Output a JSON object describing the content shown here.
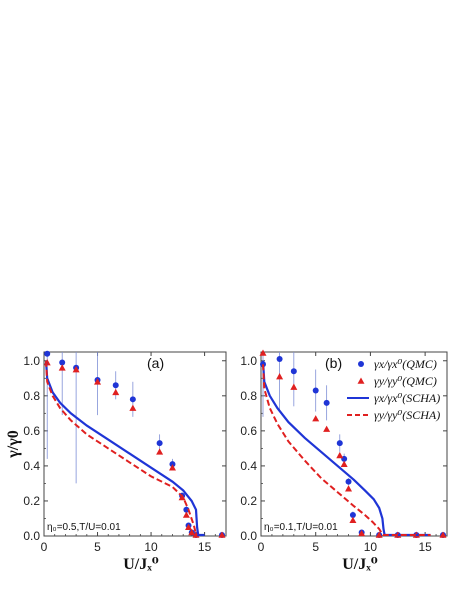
{
  "chart_data": [
    {
      "type": "scatter",
      "panel_label": "(a)",
      "annotation": "η₀=0.5,T/U=0.01",
      "xlabel": "U/Jₓ⁰",
      "ylabel": "γ/γ0",
      "xlim": [
        0,
        17
      ],
      "ylim": [
        0,
        1.05
      ],
      "xticks": [
        0,
        5,
        10,
        15
      ],
      "yticks": [
        0.0,
        0.2,
        0.4,
        0.6,
        0.8,
        1.0
      ],
      "xtick_labels": [
        "0",
        "5",
        "10",
        "15"
      ],
      "ytick_labels": [
        "0.0",
        "0.2",
        "0.4",
        "0.6",
        "0.8",
        "1.0"
      ],
      "series": [
        {
          "kind": "points",
          "marker": "circle",
          "color": "#1f35d6",
          "points": [
            {
              "x": 0.3,
              "y": 1.04,
              "err": 0.6
            },
            {
              "x": 1.7,
              "y": 0.99,
              "err": 0.3
            },
            {
              "x": 3.0,
              "y": 0.96,
              "err": 0.66
            },
            {
              "x": 5.0,
              "y": 0.89,
              "err": 0.2
            },
            {
              "x": 6.7,
              "y": 0.86,
              "err": 0.08
            },
            {
              "x": 8.3,
              "y": 0.78,
              "err": 0.1
            },
            {
              "x": 10.8,
              "y": 0.53,
              "err": 0.05
            },
            {
              "x": 12.0,
              "y": 0.41,
              "err": 0.03
            },
            {
              "x": 12.9,
              "y": 0.23,
              "err": 0.02
            },
            {
              "x": 13.3,
              "y": 0.15,
              "err": 0.02
            },
            {
              "x": 13.5,
              "y": 0.06,
              "err": 0.01
            },
            {
              "x": 13.8,
              "y": 0.02,
              "err": 0.01
            },
            {
              "x": 14.2,
              "y": 0.005,
              "err": 0.0
            },
            {
              "x": 16.7,
              "y": 0.005,
              "err": 0.0
            }
          ]
        },
        {
          "kind": "points",
          "marker": "triangle",
          "color": "#e02020",
          "points": [
            {
              "x": 0.3,
              "y": 0.99
            },
            {
              "x": 1.7,
              "y": 0.96
            },
            {
              "x": 3.0,
              "y": 0.95
            },
            {
              "x": 5.0,
              "y": 0.88
            },
            {
              "x": 6.7,
              "y": 0.82
            },
            {
              "x": 8.3,
              "y": 0.73
            },
            {
              "x": 10.8,
              "y": 0.48
            },
            {
              "x": 12.0,
              "y": 0.39
            },
            {
              "x": 12.9,
              "y": 0.22
            },
            {
              "x": 13.3,
              "y": 0.12
            },
            {
              "x": 13.5,
              "y": 0.05
            },
            {
              "x": 13.8,
              "y": 0.02
            },
            {
              "x": 14.2,
              "y": 0.005
            },
            {
              "x": 16.7,
              "y": 0.005
            }
          ]
        },
        {
          "kind": "line",
          "style": "solid",
          "color": "#1f35d6",
          "x": [
            0,
            0.3,
            0.8,
            1.5,
            2.5,
            4,
            6,
            8,
            10,
            12,
            13,
            13.8,
            14.2,
            14.3,
            14.4,
            14.6,
            15
          ],
          "y": [
            1.0,
            0.9,
            0.82,
            0.76,
            0.7,
            0.63,
            0.55,
            0.47,
            0.39,
            0.31,
            0.26,
            0.2,
            0.15,
            0.05,
            0.0,
            0.0,
            0.0
          ]
        },
        {
          "kind": "line",
          "style": "dashed",
          "color": "#e02020",
          "x": [
            0,
            0.3,
            0.8,
            1.5,
            2.5,
            4,
            6,
            8,
            10,
            12,
            13,
            13.5,
            14.0,
            14.2,
            14.3
          ],
          "y": [
            1.0,
            0.88,
            0.8,
            0.73,
            0.66,
            0.58,
            0.5,
            0.42,
            0.34,
            0.28,
            0.22,
            0.15,
            0.06,
            0.01,
            0.0
          ]
        }
      ]
    },
    {
      "type": "scatter",
      "panel_label": "(b)",
      "annotation": "η₀=0.1,T/U=0.01",
      "xlabel": "U/Jₓ⁰",
      "ylabel": "",
      "xlim": [
        0,
        17
      ],
      "ylim": [
        0,
        1.05
      ],
      "xticks": [
        0,
        5,
        10,
        15
      ],
      "yticks": [
        0.0,
        0.2,
        0.4,
        0.6,
        0.8,
        1.0
      ],
      "xtick_labels": [
        "0",
        "5",
        "10",
        "15"
      ],
      "ytick_labels": [
        "0.0",
        "0.2",
        "0.4",
        "0.6",
        "0.8",
        "1.0"
      ],
      "legend": [
        {
          "label": "γx/γx⁰(QMC)",
          "marker": "circle",
          "color": "#1f35d6"
        },
        {
          "label": "γy/γy⁰(QMC)",
          "marker": "triangle",
          "color": "#e02020"
        },
        {
          "label": "γx/γx⁰(SCHA)",
          "line": "solid",
          "color": "#1f35d6"
        },
        {
          "label": "γy/γy⁰(SCHA)",
          "line": "dashed",
          "color": "#e02020"
        }
      ],
      "series": [
        {
          "kind": "points",
          "marker": "circle",
          "color": "#1f35d6",
          "points": [
            {
              "x": 0.1,
              "y": 0.98,
              "err": 0.3
            },
            {
              "x": 1.7,
              "y": 1.01,
              "err": 0.3
            },
            {
              "x": 3.0,
              "y": 0.94,
              "err": 0.2
            },
            {
              "x": 5.0,
              "y": 0.83,
              "err": 0.12
            },
            {
              "x": 6.0,
              "y": 0.76,
              "err": 0.1
            },
            {
              "x": 7.2,
              "y": 0.53,
              "err": 0.05
            },
            {
              "x": 7.6,
              "y": 0.44,
              "err": 0.03
            },
            {
              "x": 8.0,
              "y": 0.31,
              "err": 0.02
            },
            {
              "x": 8.4,
              "y": 0.12,
              "err": 0.02
            },
            {
              "x": 9.2,
              "y": 0.02,
              "err": 0.01
            },
            {
              "x": 10.8,
              "y": 0.005,
              "err": 0.0
            },
            {
              "x": 12.5,
              "y": 0.005,
              "err": 0.0
            },
            {
              "x": 14.2,
              "y": 0.005,
              "err": 0.0
            },
            {
              "x": 16.7,
              "y": 0.005,
              "err": 0.0
            }
          ]
        },
        {
          "kind": "points",
          "marker": "triangle",
          "color": "#e02020",
          "points": [
            {
              "x": 0.1,
              "y": 1.07
            },
            {
              "x": 1.7,
              "y": 0.91
            },
            {
              "x": 3.0,
              "y": 0.85
            },
            {
              "x": 5.0,
              "y": 0.67
            },
            {
              "x": 6.0,
              "y": 0.61
            },
            {
              "x": 7.2,
              "y": 0.46
            },
            {
              "x": 7.6,
              "y": 0.41
            },
            {
              "x": 8.0,
              "y": 0.27
            },
            {
              "x": 8.4,
              "y": 0.09
            },
            {
              "x": 9.2,
              "y": 0.015
            },
            {
              "x": 10.8,
              "y": 0.005
            },
            {
              "x": 12.5,
              "y": 0.005
            },
            {
              "x": 14.2,
              "y": 0.005
            },
            {
              "x": 16.7,
              "y": 0.005
            }
          ]
        },
        {
          "kind": "line",
          "style": "solid",
          "color": "#1f35d6",
          "x": [
            0,
            0.3,
            0.8,
            1.5,
            2.5,
            4,
            5.5,
            7,
            8.5,
            9.5,
            10.3,
            10.8,
            11.1,
            11.2,
            11.3,
            12,
            15.5
          ],
          "y": [
            1.0,
            0.88,
            0.8,
            0.73,
            0.65,
            0.56,
            0.48,
            0.4,
            0.32,
            0.26,
            0.21,
            0.16,
            0.1,
            0.04,
            0.0,
            0.0,
            0.0
          ]
        },
        {
          "kind": "line",
          "style": "dashed",
          "color": "#e02020",
          "x": [
            0,
            0.3,
            0.8,
            1.5,
            2.5,
            4,
            5.5,
            7,
            8.5,
            9.5,
            10.2,
            10.8,
            11.1,
            11.2,
            15.5
          ],
          "y": [
            0.98,
            0.84,
            0.73,
            0.64,
            0.54,
            0.43,
            0.33,
            0.25,
            0.17,
            0.12,
            0.08,
            0.04,
            0.01,
            0.0,
            0.0
          ]
        }
      ]
    }
  ]
}
